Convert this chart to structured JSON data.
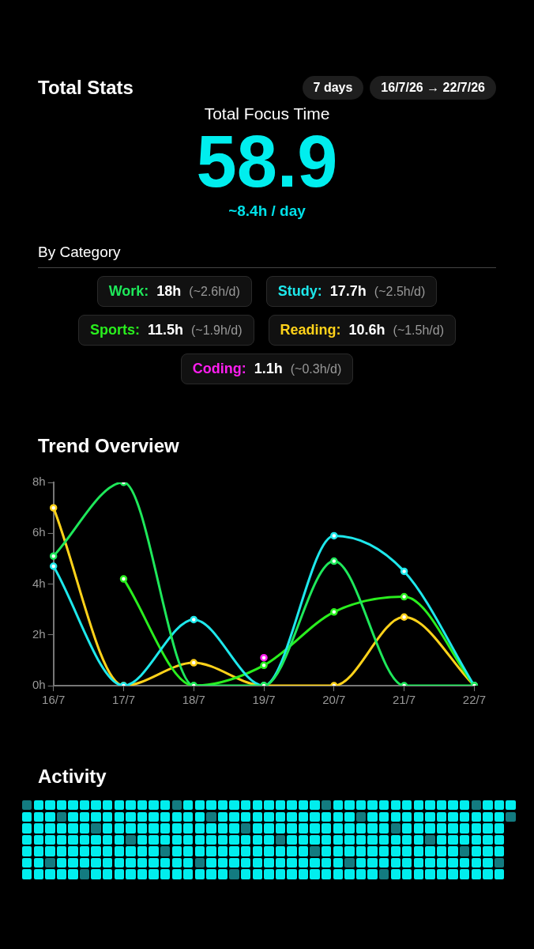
{
  "chart_data": [
    {
      "type": "other",
      "title": "Total Stats",
      "annotations": [
        "7 days",
        "16/7/26 → 22/7/26",
        "Total Focus Time",
        "58.9",
        "~8.4h / day",
        "By Category",
        "Work:",
        "18h",
        "(~2.6h/d)",
        "Study:",
        "17.7h",
        "(~2.5h/d)",
        "Sports:",
        "11.5h",
        "(~1.9h/d)",
        "Reading:",
        "10.6h",
        "(~1.5h/d)",
        "Coding:",
        "1.1h",
        "(~0.3h/d)"
      ]
    },
    {
      "type": "line",
      "title": "Trend Overview",
      "categories": [
        "16/7",
        "17/7",
        "18/7",
        "19/7",
        "20/7",
        "21/7",
        "22/7"
      ],
      "series": [
        {
          "color": "#1ee85a",
          "values": [
            5.1,
            8,
            0,
            0,
            4.9,
            0,
            0
          ]
        },
        {
          "color": "#1ee8ec",
          "values": [
            4.7,
            0,
            2.6,
            0,
            5.9,
            4.5,
            0
          ]
        },
        {
          "color": "#2aee1e",
          "values": [
            null,
            4.2,
            0,
            0.8,
            2.9,
            3.5,
            0
          ]
        },
        {
          "color": "#ffd21a",
          "values": [
            7,
            0,
            0.9,
            0,
            0,
            2.7,
            0
          ]
        },
        {
          "color": "#ff1ef0",
          "values": [
            null,
            null,
            null,
            1.1,
            null,
            null,
            null
          ]
        }
      ],
      "ylim": [
        0,
        8
      ],
      "yticks": [
        {
          "value": 0,
          "label": "0h"
        },
        {
          "value": 2,
          "label": "2h"
        },
        {
          "value": 4,
          "label": "4h"
        },
        {
          "value": 6,
          "label": "6h"
        },
        {
          "value": 8,
          "label": "8h"
        }
      ],
      "grid": false,
      "legend": false,
      "marker": "circle",
      "line_style": "solid"
    },
    {
      "type": "other",
      "title": "Activity"
    }
  ]
}
